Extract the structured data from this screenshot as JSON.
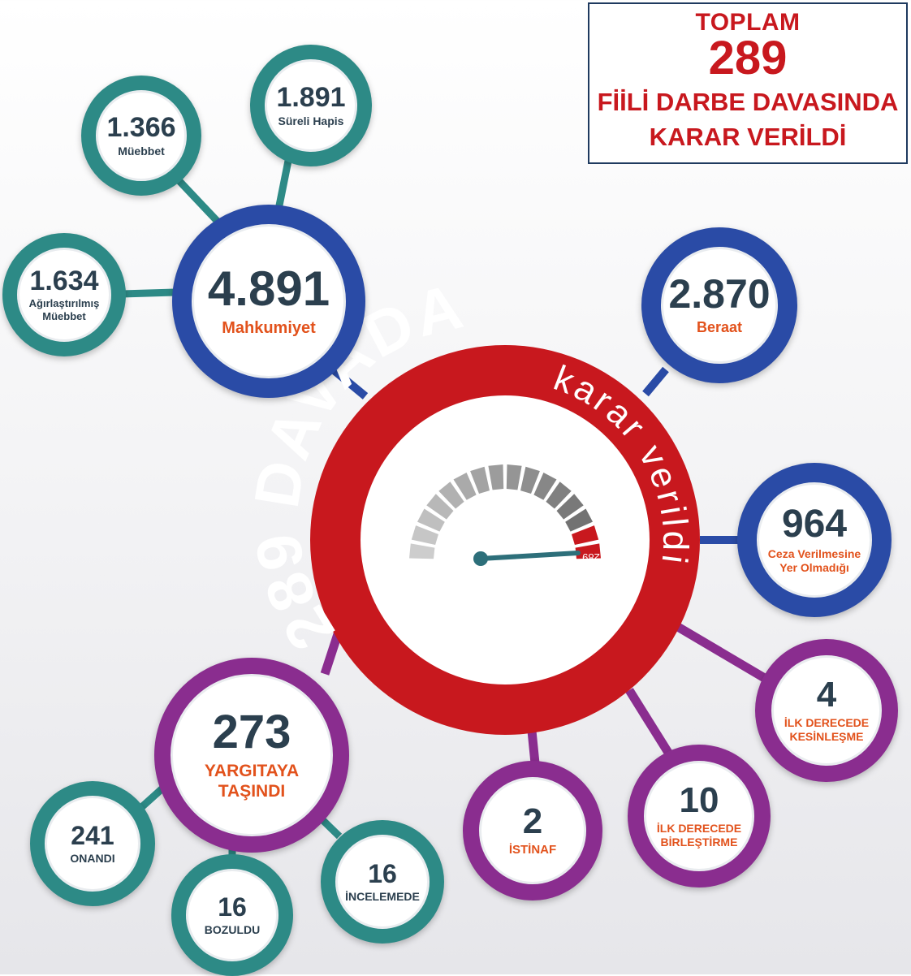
{
  "title_box": {
    "line1": "TOPLAM",
    "number": "289",
    "line2": "FİİLİ DARBE DAVASINDA",
    "line3": "KARAR VERİLDİ"
  },
  "center": {
    "big_text": "289 DAVADA",
    "small_text": "karar verildi",
    "gauge_value": "289"
  },
  "nodes": {
    "mahkumiyet": {
      "value": "4.891",
      "label": "Mahkumiyet"
    },
    "muebbet": {
      "value": "1.366",
      "label": "Müebbet"
    },
    "sureli_hapis": {
      "value": "1.891",
      "label": "Süreli Hapis"
    },
    "agir_muebbet": {
      "value": "1.634",
      "label_line1": "Ağırlaştırılmış",
      "label_line2": "Müebbet"
    },
    "beraat": {
      "value": "2.870",
      "label": "Beraat"
    },
    "ceza": {
      "value": "964",
      "label_line1": "Ceza Verilmesine",
      "label_line2": "Yer Olmadığı"
    },
    "yargitay": {
      "value": "273",
      "label_line1": "YARGITAYA",
      "label_line2": "TAŞINDI"
    },
    "onandi": {
      "value": "241",
      "label": "ONANDI"
    },
    "bozuldu": {
      "value": "16",
      "label": "BOZULDU"
    },
    "incelemede": {
      "value": "16",
      "label": "İNCELEMEDE"
    },
    "istinaf": {
      "value": "2",
      "label": "İSTİNAF"
    },
    "birlestirme": {
      "value": "10",
      "label_line1": "İLK DERECEDE",
      "label_line2": "BİRLEŞTİRME"
    },
    "kesinlesme": {
      "value": "4",
      "label_line1": "İLK DERECEDE",
      "label_line2": "KESİNLEŞME"
    }
  },
  "colors": {
    "red": "#c8181e",
    "teal": "#2d8a86",
    "blue": "#2a4ba6",
    "purple": "#8a2d8f",
    "orange": "#e2521c",
    "dark": "#2b3f4e"
  }
}
